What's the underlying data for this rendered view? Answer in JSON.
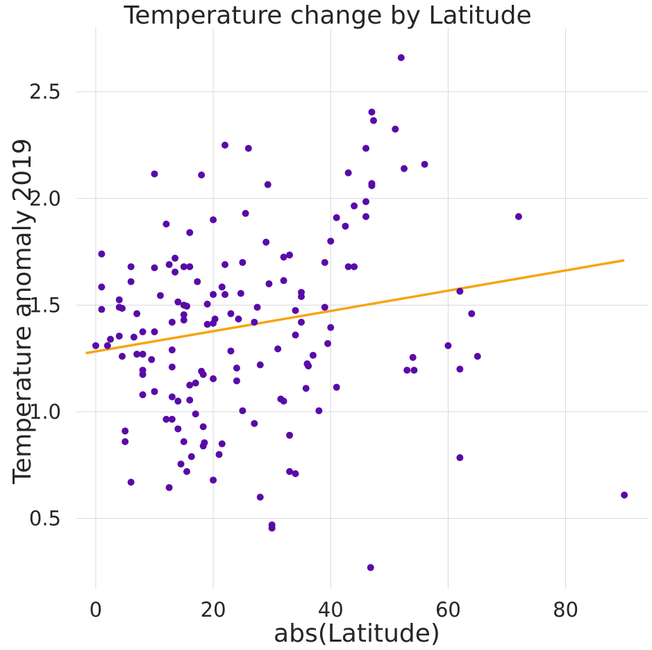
{
  "chart_data": {
    "type": "scatter",
    "title": "Temperature change by Latitude",
    "xlabel": "abs(Latitude)",
    "ylabel": "Temperature anomaly 2019",
    "xlim": [
      -3.3,
      94.0
    ],
    "ylim": [
      0.17,
      2.8
    ],
    "xticks": [
      0,
      20,
      40,
      60,
      80
    ],
    "xtick_labels": [
      "0",
      "20",
      "40",
      "60",
      "80"
    ],
    "yticks": [
      0.5,
      1.0,
      1.5,
      2.0,
      2.5
    ],
    "ytick_labels": [
      "0.5",
      "1.0",
      "1.5",
      "2.0",
      "2.5"
    ],
    "grid": true,
    "colors": {
      "points": "#5a0aa8",
      "fit_line": "#f5a511",
      "grid": "#d9d9d9"
    },
    "regression_line": {
      "x": [
        -1.7,
        90.0
      ],
      "y": [
        1.275,
        1.71
      ]
    },
    "points": [
      [
        0,
        1.31
      ],
      [
        1,
        1.74
      ],
      [
        1,
        1.585
      ],
      [
        1,
        1.48
      ],
      [
        2,
        1.31
      ],
      [
        2.5,
        1.34
      ],
      [
        4,
        1.525
      ],
      [
        4,
        1.49
      ],
      [
        4,
        1.355
      ],
      [
        4.5,
        1.485
      ],
      [
        4.5,
        1.26
      ],
      [
        5,
        0.91
      ],
      [
        5,
        0.86
      ],
      [
        6,
        1.68
      ],
      [
        6,
        1.61
      ],
      [
        6,
        0.67
      ],
      [
        6.5,
        1.35
      ],
      [
        7,
        1.46
      ],
      [
        7,
        1.27
      ],
      [
        8,
        1.375
      ],
      [
        8,
        1.27
      ],
      [
        8,
        1.195
      ],
      [
        8,
        1.175
      ],
      [
        8,
        1.08
      ],
      [
        9.5,
        1.245
      ],
      [
        10,
        2.115
      ],
      [
        10,
        1.675
      ],
      [
        10,
        1.375
      ],
      [
        10,
        1.095
      ],
      [
        11,
        1.545
      ],
      [
        12,
        1.88
      ],
      [
        12,
        0.965
      ],
      [
        12.5,
        1.69
      ],
      [
        12.5,
        0.645
      ],
      [
        13,
        1.42
      ],
      [
        13,
        1.29
      ],
      [
        13,
        1.21
      ],
      [
        13,
        1.07
      ],
      [
        13,
        0.965
      ],
      [
        13.5,
        1.655
      ],
      [
        13.5,
        1.72
      ],
      [
        14,
        1.515
      ],
      [
        14,
        1.05
      ],
      [
        14,
        0.92
      ],
      [
        14.5,
        0.755
      ],
      [
        15,
        1.68
      ],
      [
        15,
        1.5
      ],
      [
        15,
        1.455
      ],
      [
        15,
        1.43
      ],
      [
        15,
        0.86
      ],
      [
        15.5,
        0.72
      ],
      [
        15.5,
        1.495
      ],
      [
        16,
        1.84
      ],
      [
        16,
        1.68
      ],
      [
        16,
        1.125
      ],
      [
        16,
        1.055
      ],
      [
        16.3,
        0.79
      ],
      [
        17,
        1.135
      ],
      [
        17,
        0.99
      ],
      [
        17.3,
        1.61
      ],
      [
        18,
        2.11
      ],
      [
        18,
        1.19
      ],
      [
        18.3,
        1.175
      ],
      [
        18.3,
        0.93
      ],
      [
        18.3,
        0.84
      ],
      [
        18.5,
        0.855
      ],
      [
        19,
        1.505
      ],
      [
        19,
        1.41
      ],
      [
        20,
        1.9
      ],
      [
        20,
        1.55
      ],
      [
        20,
        1.415
      ],
      [
        20,
        1.155
      ],
      [
        20,
        0.68
      ],
      [
        20.3,
        1.435
      ],
      [
        21,
        0.8
      ],
      [
        21.5,
        1.585
      ],
      [
        21.5,
        0.85
      ],
      [
        22,
        2.25
      ],
      [
        22,
        1.69
      ],
      [
        22,
        1.55
      ],
      [
        23,
        1.46
      ],
      [
        23,
        1.285
      ],
      [
        24,
        1.205
      ],
      [
        24,
        1.145
      ],
      [
        24.3,
        1.435
      ],
      [
        24.7,
        1.555
      ],
      [
        25,
        1.7
      ],
      [
        25,
        1.005
      ],
      [
        25.5,
        1.93
      ],
      [
        26,
        2.235
      ],
      [
        27,
        1.42
      ],
      [
        27,
        0.945
      ],
      [
        27.5,
        1.49
      ],
      [
        28,
        1.22
      ],
      [
        28,
        0.6
      ],
      [
        29,
        1.795
      ],
      [
        29.3,
        2.065
      ],
      [
        29.5,
        1.6
      ],
      [
        30,
        0.47
      ],
      [
        30,
        0.455
      ],
      [
        31,
        1.295
      ],
      [
        31.5,
        1.06
      ],
      [
        32,
        1.725
      ],
      [
        32,
        1.615
      ],
      [
        32,
        1.05
      ],
      [
        33,
        1.735
      ],
      [
        33,
        0.89
      ],
      [
        33,
        0.72
      ],
      [
        34,
        1.475
      ],
      [
        34,
        1.36
      ],
      [
        34,
        0.71
      ],
      [
        35,
        1.56
      ],
      [
        35,
        1.54
      ],
      [
        35,
        1.42
      ],
      [
        35.8,
        1.11
      ],
      [
        36,
        1.225
      ],
      [
        36.2,
        1.215
      ],
      [
        37,
        1.265
      ],
      [
        38,
        1.005
      ],
      [
        39,
        1.7
      ],
      [
        39,
        1.49
      ],
      [
        39.5,
        1.32
      ],
      [
        40,
        1.8
      ],
      [
        40,
        1.395
      ],
      [
        41,
        1.91
      ],
      [
        41,
        1.115
      ],
      [
        42.5,
        1.87
      ],
      [
        43,
        2.12
      ],
      [
        43,
        1.68
      ],
      [
        44,
        1.68
      ],
      [
        44,
        1.965
      ],
      [
        46,
        2.235
      ],
      [
        46,
        1.985
      ],
      [
        46,
        1.915
      ],
      [
        47,
        2.405
      ],
      [
        47,
        2.07
      ],
      [
        47,
        2.06
      ],
      [
        47.3,
        2.365
      ],
      [
        46.8,
        0.27
      ],
      [
        51,
        2.325
      ],
      [
        52,
        2.66
      ],
      [
        52.5,
        2.14
      ],
      [
        53,
        1.195
      ],
      [
        54,
        1.255
      ],
      [
        54.2,
        1.195
      ],
      [
        56,
        2.16
      ],
      [
        60,
        1.31
      ],
      [
        62,
        1.565
      ],
      [
        62,
        1.2
      ],
      [
        62,
        0.785
      ],
      [
        64,
        1.46
      ],
      [
        65,
        1.26
      ],
      [
        72,
        1.915
      ],
      [
        90,
        0.61
      ]
    ]
  }
}
